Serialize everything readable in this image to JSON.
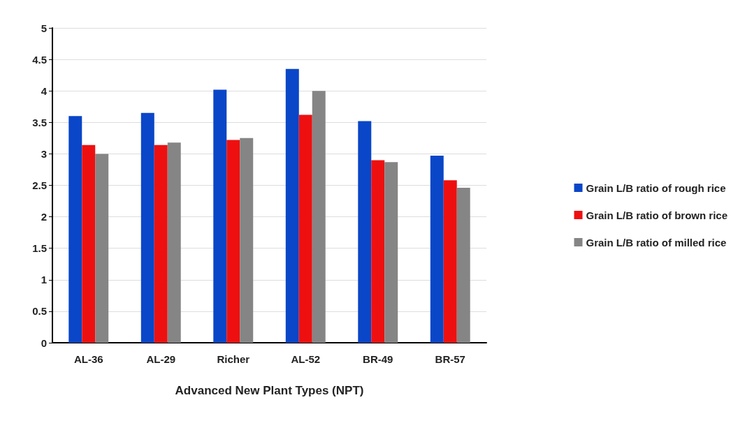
{
  "chart_data": {
    "type": "bar",
    "xlabel": "Advanced New Plant Types (NPT)",
    "categories": [
      "AL-36",
      "AL-29",
      "Richer",
      "AL-52",
      "BR-49",
      "BR-57"
    ],
    "series": [
      {
        "name": "Grain L/B ratio of rough rice",
        "color": "#0a46c8",
        "values": [
          3.6,
          3.65,
          4.02,
          4.35,
          3.52,
          2.97
        ]
      },
      {
        "name": "Grain L/B ratio of brown rice",
        "color": "#ee1010",
        "values": [
          3.14,
          3.14,
          3.22,
          3.62,
          2.9,
          2.58
        ]
      },
      {
        "name": "Grain L/B ratio of milled rice",
        "color": "#858585",
        "values": [
          3.0,
          3.18,
          3.25,
          4.0,
          2.87,
          2.46
        ]
      }
    ],
    "ylim": [
      0,
      5
    ],
    "yticks": [
      0,
      0.5,
      1,
      1.5,
      2,
      2.5,
      3,
      3.5,
      4,
      4.5,
      5
    ],
    "grid": "y",
    "legend": "right"
  }
}
